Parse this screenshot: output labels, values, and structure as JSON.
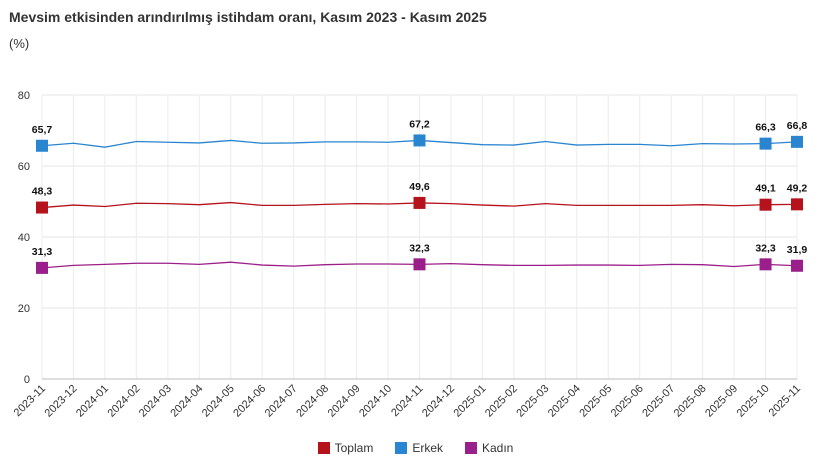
{
  "header": {
    "title": "Mevsim etkisinden arındırılmış istihdam oranı, Kasım 2023 - Kasım 2025",
    "unit": "(%)"
  },
  "chart_data": {
    "type": "line",
    "title": "Mevsim etkisinden arındırılmış istihdam oranı, Kasım 2023 - Kasım 2025",
    "ylabel": "(%)",
    "xlabel": "",
    "ylim": [
      0,
      80
    ],
    "yticks": [
      0,
      20,
      40,
      60,
      80
    ],
    "grid": true,
    "legend_position": "bottom-center",
    "categories": [
      "2023-11",
      "2023-12",
      "2024-01",
      "2024-02",
      "2024-03",
      "2024-04",
      "2024-05",
      "2024-06",
      "2024-07",
      "2024-08",
      "2024-09",
      "2024-10",
      "2024-11",
      "2024-12",
      "2025-01",
      "2025-02",
      "2025-03",
      "2025-04",
      "2025-05",
      "2025-06",
      "2025-07",
      "2025-08",
      "2025-09",
      "2025-10",
      "2025-11"
    ],
    "series": [
      {
        "name": "Toplam",
        "color": "#b5121b",
        "values": [
          48.3,
          49.0,
          48.6,
          49.5,
          49.4,
          49.1,
          49.7,
          48.9,
          48.9,
          49.2,
          49.4,
          49.3,
          49.6,
          49.4,
          49.0,
          48.7,
          49.4,
          48.9,
          48.9,
          48.9,
          48.9,
          49.1,
          48.8,
          49.1,
          49.2
        ],
        "labeled": {
          "0": "48,3",
          "12": "49,6",
          "23": "49,1",
          "24": "49,2"
        }
      },
      {
        "name": "Erkek",
        "color": "#2a85d0",
        "values": [
          65.7,
          66.4,
          65.3,
          66.9,
          66.7,
          66.5,
          67.2,
          66.4,
          66.5,
          66.8,
          66.8,
          66.7,
          67.2,
          66.6,
          66.0,
          65.9,
          66.9,
          65.9,
          66.1,
          66.1,
          65.7,
          66.3,
          66.2,
          66.3,
          66.8
        ],
        "labeled": {
          "0": "65,7",
          "12": "67,2",
          "23": "66,3",
          "24": "66,8"
        }
      },
      {
        "name": "Kadın",
        "color": "#9b1f8a",
        "values": [
          31.3,
          32.0,
          32.3,
          32.6,
          32.6,
          32.3,
          32.9,
          32.1,
          31.8,
          32.2,
          32.4,
          32.4,
          32.3,
          32.5,
          32.2,
          32.0,
          32.0,
          32.1,
          32.1,
          32.0,
          32.3,
          32.2,
          31.7,
          32.3,
          31.9
        ],
        "labeled": {
          "0": "31,3",
          "12": "32,3",
          "23": "32,3",
          "24": "31,9"
        }
      }
    ]
  }
}
